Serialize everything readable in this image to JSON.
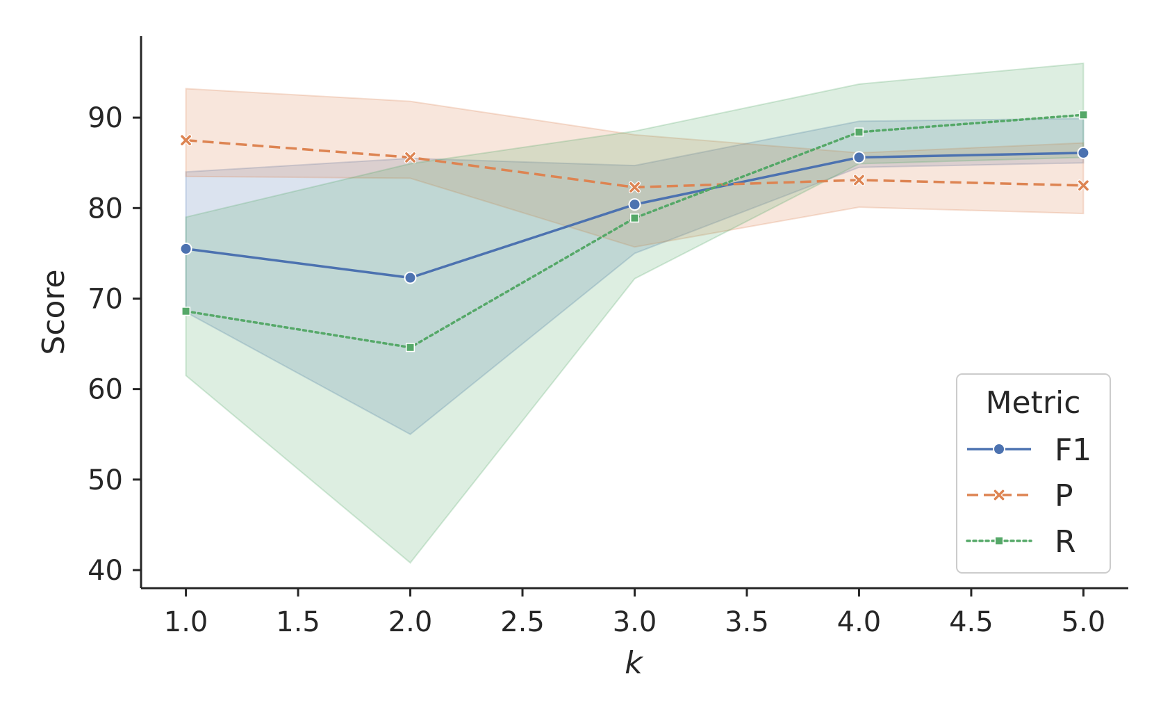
{
  "chart_data": {
    "type": "line",
    "title": "",
    "xlabel": "k",
    "ylabel": "Score",
    "x": [
      1.0,
      2.0,
      3.0,
      4.0,
      5.0
    ],
    "xlim": [
      0.8,
      5.2
    ],
    "ylim": [
      38,
      99
    ],
    "xticks": [
      "1.0",
      "1.5",
      "2.0",
      "2.5",
      "3.0",
      "3.5",
      "4.0",
      "4.5",
      "5.0"
    ],
    "yticks": [
      "40",
      "50",
      "60",
      "70",
      "80",
      "90"
    ],
    "legend": {
      "title": "Metric",
      "placement": "lower-right"
    },
    "series": [
      {
        "name": "F1",
        "color": "#4c72b0",
        "marker": "circle",
        "dash": "solid",
        "values": [
          75.5,
          72.3,
          80.4,
          85.6,
          86.1
        ],
        "lower": [
          68.5,
          55.0,
          75.0,
          84.5,
          85.0
        ],
        "upper": [
          84.0,
          85.5,
          84.7,
          89.6,
          89.9
        ]
      },
      {
        "name": "P",
        "color": "#dd8452",
        "marker": "x",
        "dash": "dashed",
        "values": [
          87.5,
          85.6,
          82.3,
          83.1,
          82.5
        ],
        "lower": [
          83.5,
          83.3,
          75.7,
          80.1,
          79.4
        ],
        "upper": [
          93.2,
          91.8,
          88.1,
          86.1,
          87.2
        ]
      },
      {
        "name": "R",
        "color": "#55a868",
        "marker": "square",
        "dash": "dotted",
        "values": [
          68.6,
          64.6,
          78.9,
          88.4,
          90.3
        ],
        "lower": [
          61.5,
          40.8,
          72.2,
          84.9,
          85.6
        ],
        "upper": [
          79.0,
          84.9,
          88.5,
          93.7,
          96.0
        ]
      }
    ]
  }
}
